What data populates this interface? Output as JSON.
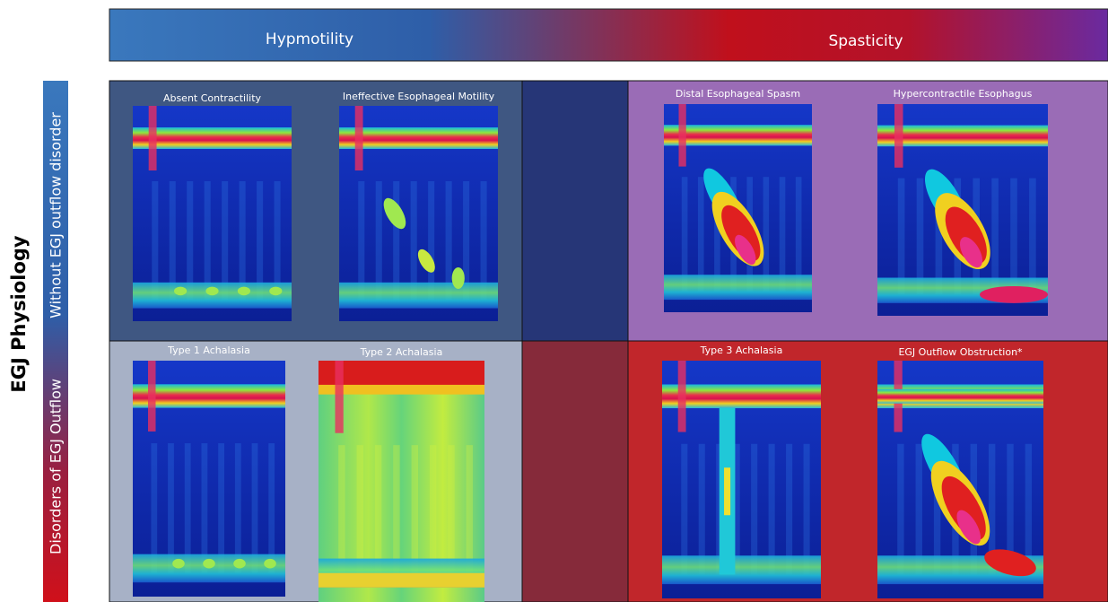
{
  "header": {
    "left": "Hypmotility",
    "right": "Spasticity"
  },
  "side": {
    "title": "EGJ Physiology",
    "top": "Without EGJ outflow disorder",
    "bottom": "Disorders of EGJ Outflow"
  },
  "panels": [
    {
      "title": "Absent Contractility"
    },
    {
      "title": "Ineffective Esophageal Motility"
    },
    {
      "title": "Distal Esophageal Spasm"
    },
    {
      "title": "Hypercontractile Esophagus"
    },
    {
      "title": "Type 1 Achalasia"
    },
    {
      "title": "Type 2 Achalasia"
    },
    {
      "title": "Type 3 Achalasia"
    },
    {
      "title": "EGJ Outflow Obstruction*"
    }
  ]
}
